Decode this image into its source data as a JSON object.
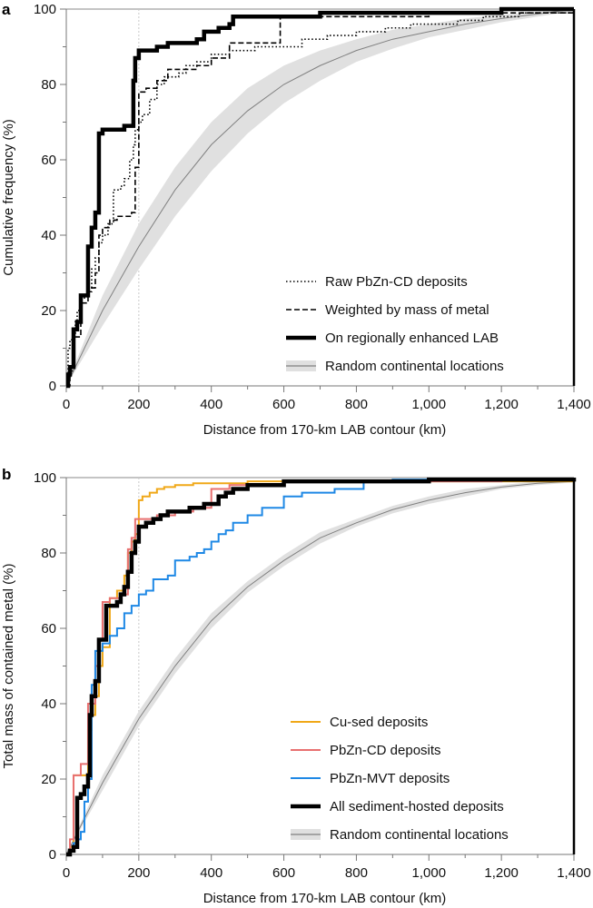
{
  "chart_data": [
    {
      "panel": "a",
      "type": "line",
      "subtype": "step-cdf",
      "title": "",
      "xlabel": "Distance from 170-km LAB contour (km)",
      "ylabel": "Cumulative frequency (%)",
      "xlim": [
        0,
        1400
      ],
      "ylim": [
        0,
        100
      ],
      "xticks": [
        0,
        200,
        400,
        600,
        800,
        1000,
        1200,
        1400
      ],
      "xtick_labels": [
        "0",
        "200",
        "400",
        "600",
        "800",
        "1,000",
        "1,200",
        "1,400"
      ],
      "yticks": [
        0,
        20,
        40,
        60,
        80,
        100
      ],
      "ytick_labels": [
        "0",
        "20",
        "40",
        "60",
        "80",
        "100"
      ],
      "reference_line_x": 200,
      "grid": false,
      "legend_position": "bottom-right",
      "series": [
        {
          "name": "Raw PbZn-CD deposits",
          "style": "dotted",
          "color": "#000000",
          "x": [
            0,
            5,
            10,
            15,
            20,
            25,
            30,
            40,
            50,
            60,
            70,
            80,
            90,
            100,
            115,
            130,
            150,
            160,
            175,
            185,
            190,
            200,
            210,
            230,
            250,
            270,
            290,
            310,
            330,
            360,
            400,
            450,
            520,
            580,
            650,
            720,
            800,
            880,
            950,
            1080,
            1150,
            1250,
            1400
          ],
          "y": [
            0,
            10,
            12,
            13,
            14,
            17,
            20,
            23,
            24,
            26,
            31,
            34,
            38,
            40,
            43,
            52,
            53,
            55,
            60,
            64,
            68,
            70,
            72,
            76,
            80,
            82,
            82,
            83,
            85,
            86,
            88,
            89,
            90,
            90,
            92,
            93,
            94,
            95,
            96,
            97,
            98,
            99,
            100
          ]
        },
        {
          "name": "Weighted by mass of metal",
          "style": "dashed",
          "color": "#000000",
          "x": [
            0,
            10,
            20,
            40,
            60,
            70,
            80,
            90,
            100,
            120,
            140,
            160,
            180,
            190,
            200,
            220,
            250,
            280,
            300,
            330,
            360,
            400,
            450,
            500,
            580,
            590,
            700,
            800,
            1000,
            1200,
            1400
          ],
          "y": [
            0,
            4,
            13,
            22,
            25,
            26,
            30,
            40,
            42,
            44,
            45,
            45,
            46,
            58,
            78,
            79,
            81,
            84,
            84,
            84,
            85,
            87,
            91,
            91,
            91,
            98,
            98,
            98,
            99,
            99,
            100
          ]
        },
        {
          "name": "On regionally enhanced LAB",
          "style": "solid-thick",
          "color": "#000000",
          "x": [
            0,
            5,
            10,
            20,
            30,
            40,
            50,
            60,
            70,
            80,
            90,
            100,
            120,
            140,
            160,
            180,
            185,
            190,
            200,
            220,
            250,
            280,
            310,
            340,
            360,
            380,
            420,
            450,
            460,
            500,
            600,
            700,
            800,
            900,
            1000,
            1200,
            1400
          ],
          "y": [
            0,
            3,
            5,
            15,
            17,
            24,
            24,
            37,
            42,
            46,
            67,
            68,
            68,
            68,
            69,
            69,
            81,
            87,
            89,
            89,
            90,
            91,
            91,
            91,
            92,
            94,
            95,
            96,
            98,
            98,
            98,
            99,
            99,
            99,
            99,
            100,
            100
          ]
        },
        {
          "name": "Random continental locations",
          "style": "mean-with-band",
          "color": "#808080",
          "band_color": "#e0e0e0",
          "x": [
            0,
            100,
            200,
            300,
            400,
            500,
            600,
            700,
            800,
            900,
            1000,
            1100,
            1200,
            1300,
            1400
          ],
          "y": [
            0,
            20,
            37,
            52,
            64,
            73,
            80,
            85,
            89,
            92,
            94,
            96,
            97.5,
            98.7,
            100
          ],
          "lower": [
            0,
            16,
            31,
            45,
            57,
            67,
            75,
            81,
            86,
            89.5,
            92.5,
            94.5,
            96.5,
            98,
            99.5
          ],
          "upper": [
            0,
            24,
            43,
            58,
            70,
            79,
            85,
            89,
            92,
            94.5,
            96,
            97.5,
            98.5,
            99.3,
            100
          ]
        }
      ]
    },
    {
      "panel": "b",
      "type": "line",
      "subtype": "step-cdf",
      "title": "",
      "xlabel": "Distance from 170-km LAB contour (km)",
      "ylabel": "Total mass of contained metal (%)",
      "xlim": [
        0,
        1400
      ],
      "ylim": [
        0,
        100
      ],
      "xticks": [
        0,
        200,
        400,
        600,
        800,
        1000,
        1200,
        1400
      ],
      "xtick_labels": [
        "0",
        "200",
        "400",
        "600",
        "800",
        "1,000",
        "1,200",
        "1,400"
      ],
      "yticks": [
        0,
        20,
        40,
        60,
        80,
        100
      ],
      "ytick_labels": [
        "0",
        "20",
        "40",
        "60",
        "80",
        "100"
      ],
      "reference_line_x": 200,
      "grid": false,
      "legend_position": "bottom-right",
      "series": [
        {
          "name": "Cu-sed deposits",
          "style": "solid",
          "color": "#f0a818",
          "x": [
            0,
            10,
            20,
            40,
            60,
            70,
            80,
            90,
            100,
            120,
            140,
            160,
            170,
            180,
            190,
            200,
            210,
            230,
            250,
            270,
            300,
            350,
            400,
            500,
            600,
            800,
            1000,
            1200,
            1400
          ],
          "y": [
            0,
            2,
            21,
            21,
            33,
            37,
            42,
            50,
            55,
            68,
            70,
            74,
            80,
            83,
            85,
            94,
            95,
            96,
            97,
            97.5,
            98,
            98.5,
            98.5,
            99,
            99,
            99,
            99,
            99,
            99
          ]
        },
        {
          "name": "PbZn-CD deposits",
          "style": "solid",
          "color": "#e87070",
          "x": [
            0,
            10,
            20,
            40,
            50,
            60,
            80,
            90,
            100,
            120,
            150,
            170,
            180,
            190,
            200,
            220,
            250,
            300,
            350,
            380,
            400,
            450,
            600,
            800,
            1200,
            1400
          ],
          "y": [
            0,
            4,
            21,
            24,
            24,
            40,
            50,
            57,
            67,
            68,
            69,
            81,
            84,
            89,
            89,
            89,
            90,
            91,
            92,
            92,
            97,
            98,
            99,
            99,
            99.5,
            100
          ]
        },
        {
          "name": "PbZn-MVT deposits",
          "style": "solid",
          "color": "#1e88e5",
          "x": [
            0,
            10,
            20,
            30,
            40,
            50,
            60,
            70,
            80,
            100,
            120,
            140,
            160,
            180,
            200,
            220,
            240,
            280,
            300,
            340,
            360,
            380,
            400,
            420,
            440,
            460,
            500,
            540,
            600,
            650,
            700,
            740,
            800,
            820,
            900,
            1000,
            1200,
            1400
          ],
          "y": [
            0,
            1,
            3,
            4,
            6,
            14,
            20,
            45,
            54,
            56,
            58,
            60,
            64,
            66,
            69,
            70,
            73,
            74,
            78,
            79,
            80,
            81,
            83,
            85,
            86,
            88,
            90,
            92,
            95,
            96,
            96,
            97,
            97,
            99,
            99.5,
            99.5,
            99.5,
            100
          ]
        },
        {
          "name": "All sediment-hosted deposits",
          "style": "solid-thick",
          "color": "#000000",
          "x": [
            0,
            10,
            20,
            30,
            40,
            50,
            60,
            65,
            70,
            80,
            90,
            100,
            110,
            120,
            140,
            150,
            160,
            170,
            180,
            190,
            200,
            220,
            240,
            260,
            280,
            300,
            340,
            380,
            420,
            440,
            460,
            500,
            600,
            800,
            1000,
            1200,
            1400
          ],
          "y": [
            0,
            1,
            2,
            15,
            16,
            18,
            21,
            37,
            42,
            46,
            57,
            57,
            66,
            66,
            67,
            69,
            71,
            75,
            80,
            83,
            87,
            88,
            89,
            90,
            91,
            91,
            92,
            93,
            95,
            96,
            97,
            98,
            99,
            99,
            99.5,
            99.5,
            100
          ]
        },
        {
          "name": "Random continental locations",
          "style": "mean-with-band",
          "color": "#808080",
          "band_color": "#e0e0e0",
          "x": [
            0,
            100,
            200,
            300,
            400,
            500,
            600,
            700,
            800,
            900,
            1000,
            1100,
            1200,
            1300,
            1400
          ],
          "y": [
            0,
            19,
            36,
            50,
            62,
            71,
            78,
            84,
            88,
            91.5,
            94,
            96,
            97.5,
            98.5,
            99
          ],
          "lower": [
            0,
            17,
            34,
            48,
            60,
            69.5,
            76.5,
            82.5,
            87,
            90.5,
            93,
            95,
            97,
            98,
            98.7
          ],
          "upper": [
            0,
            21,
            38,
            52,
            64,
            72.5,
            79.5,
            85.5,
            89,
            92.5,
            95,
            97,
            98,
            99,
            99.3
          ]
        }
      ]
    }
  ],
  "panels": [
    {
      "label": "a"
    },
    {
      "label": "b"
    }
  ]
}
